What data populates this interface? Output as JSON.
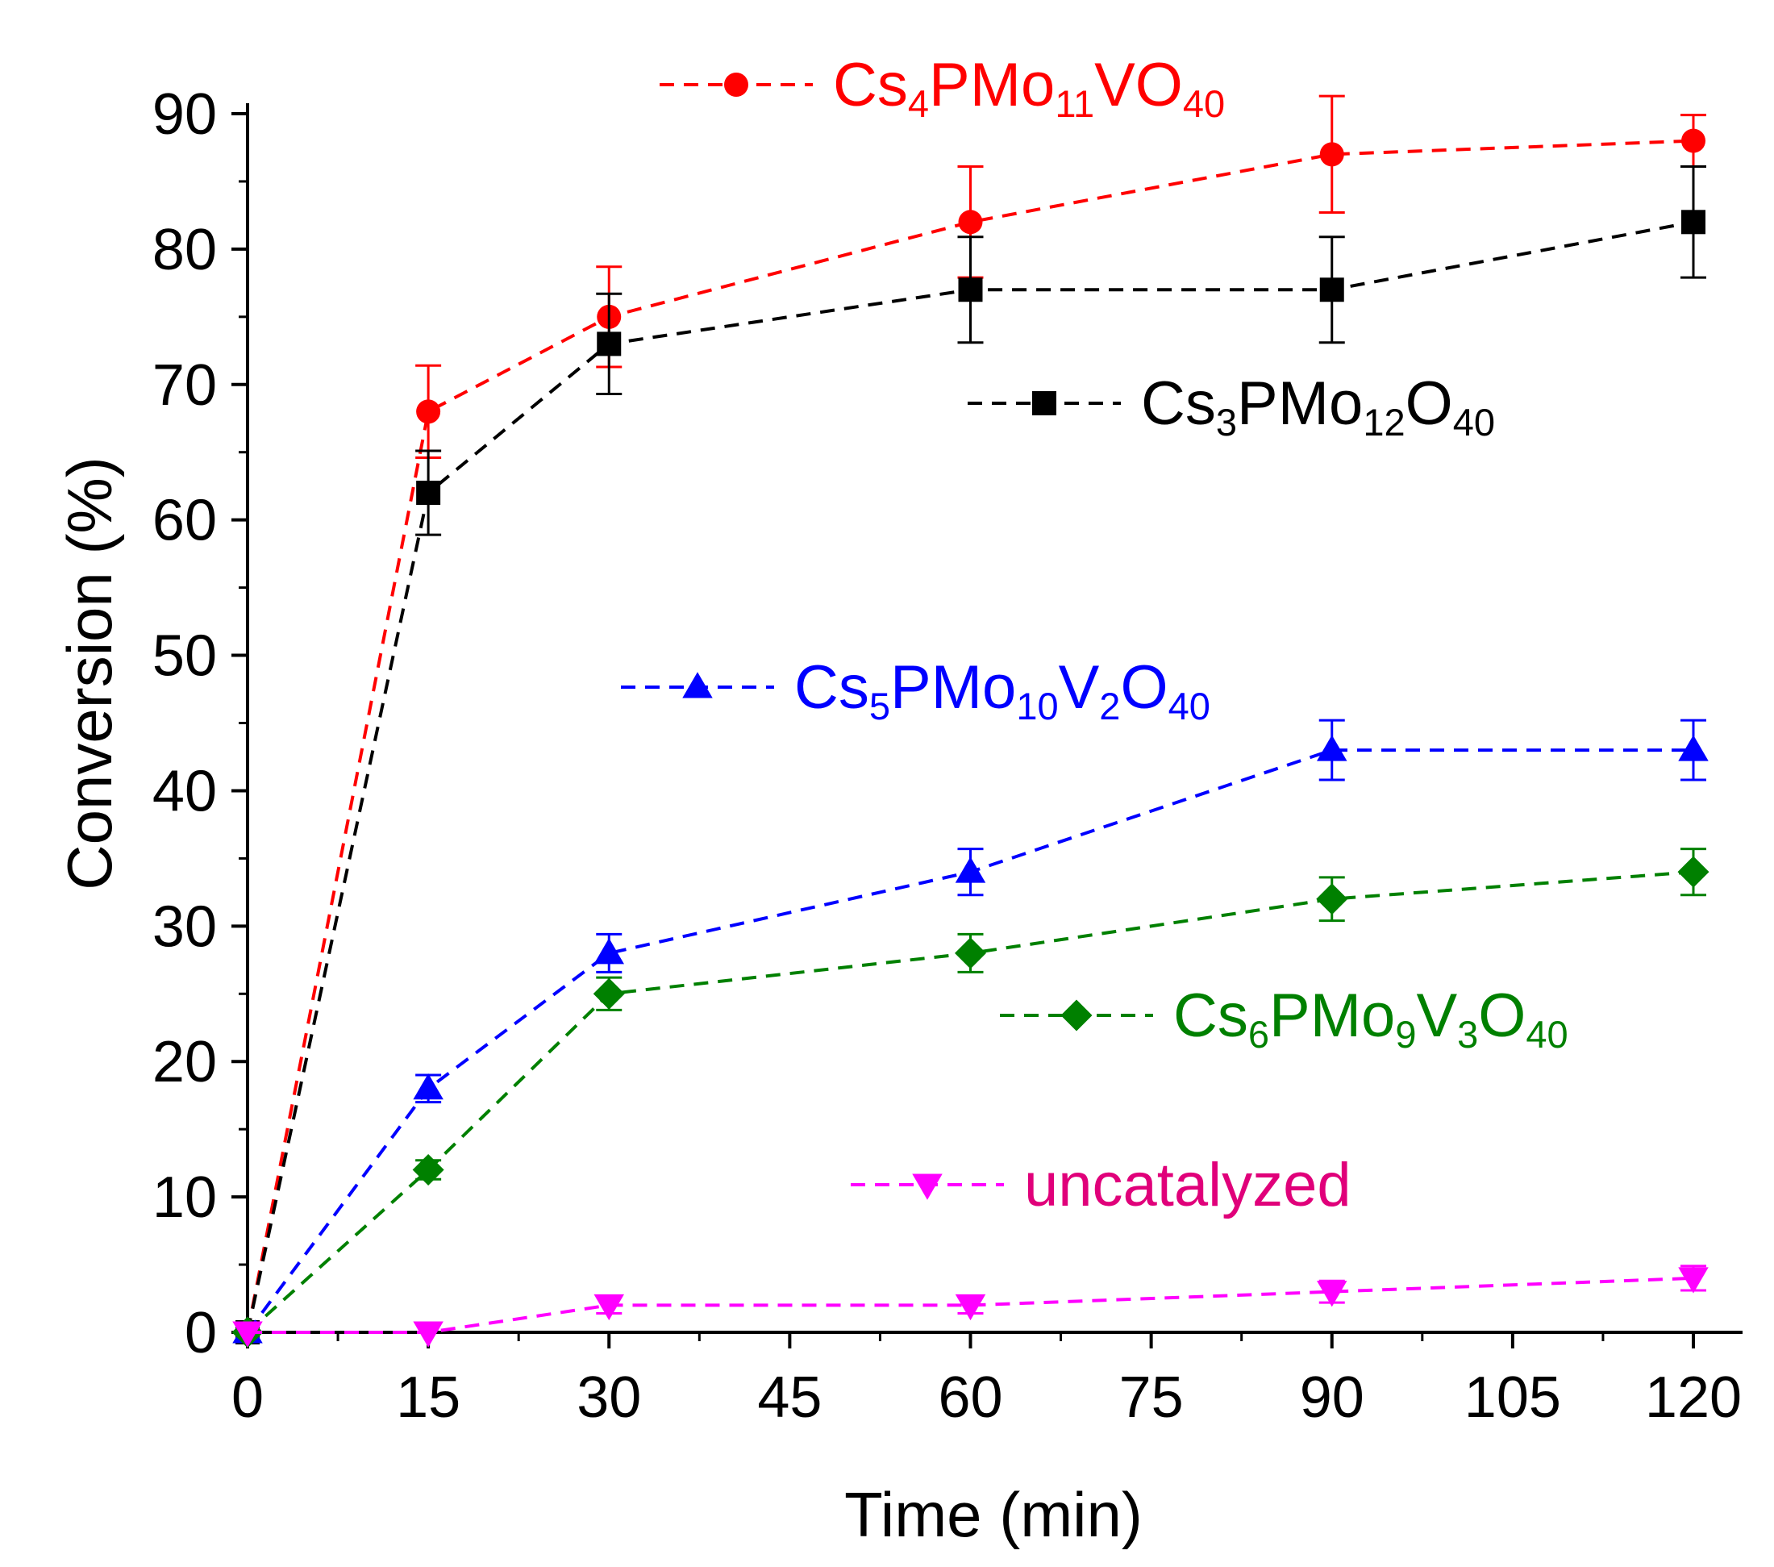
{
  "chart_data": {
    "type": "line",
    "title": "",
    "xlabel": "Time (min)",
    "ylabel": "Conversion (%)",
    "xlim": [
      0,
      124
    ],
    "ylim": [
      0,
      90
    ],
    "xticks": [
      0,
      15,
      30,
      45,
      60,
      75,
      90,
      105,
      120
    ],
    "yticks": [
      0,
      10,
      20,
      30,
      40,
      50,
      60,
      70,
      80,
      90
    ],
    "grid": false,
    "line_style": "dashed",
    "series": [
      {
        "name": "Cs4PMo11VO40",
        "label_parts": [
          [
            "Cs",
            ""
          ],
          [
            "4",
            "sub"
          ],
          [
            "PMo",
            ""
          ],
          [
            "11",
            "sub"
          ],
          [
            "VO",
            ""
          ],
          [
            "40",
            "sub"
          ]
        ],
        "color": "#ff0000",
        "marker": "circle",
        "x": [
          0,
          15,
          30,
          60,
          90,
          120
        ],
        "y": [
          0,
          68,
          75,
          82,
          87,
          88
        ],
        "err": [
          0,
          3.4,
          3.7,
          4.1,
          4.3,
          1.9
        ],
        "legend_pos": "top-center"
      },
      {
        "name": "Cs3PMo12O40",
        "label_parts": [
          [
            "Cs",
            ""
          ],
          [
            "3",
            "sub"
          ],
          [
            "PMo",
            ""
          ],
          [
            "12",
            "sub"
          ],
          [
            "O",
            ""
          ],
          [
            "40",
            "sub"
          ]
        ],
        "color": "#000000",
        "marker": "square",
        "x": [
          0,
          15,
          30,
          60,
          90,
          120
        ],
        "y": [
          0,
          62,
          73,
          77,
          77,
          82
        ],
        "err": [
          0,
          3.1,
          3.7,
          3.9,
          3.9,
          4.1
        ],
        "legend_pos": "upper-right"
      },
      {
        "name": "Cs5PMo10V2O40",
        "label_parts": [
          [
            "Cs",
            ""
          ],
          [
            "5",
            "sub"
          ],
          [
            "PMo",
            ""
          ],
          [
            "10",
            "sub"
          ],
          [
            "V",
            ""
          ],
          [
            "2",
            "sub"
          ],
          [
            "O",
            ""
          ],
          [
            "40",
            "sub"
          ]
        ],
        "color": "#0000ff",
        "marker": "triangle-up",
        "x": [
          0,
          15,
          30,
          60,
          90,
          120
        ],
        "y": [
          0,
          18,
          28,
          34,
          43,
          43
        ],
        "err": [
          0,
          1.0,
          1.4,
          1.7,
          2.2,
          2.2
        ],
        "legend_pos": "middle-center"
      },
      {
        "name": "Cs6PMo9V3O40",
        "label_parts": [
          [
            "Cs",
            ""
          ],
          [
            "6",
            "sub"
          ],
          [
            "PMo",
            ""
          ],
          [
            "9",
            "sub"
          ],
          [
            "V",
            ""
          ],
          [
            "3",
            "sub"
          ],
          [
            "O",
            ""
          ],
          [
            "40",
            "sub"
          ]
        ],
        "color": "#008000",
        "marker": "diamond",
        "x": [
          0,
          15,
          30,
          60,
          90,
          120
        ],
        "y": [
          0,
          12,
          25,
          28,
          32,
          34
        ],
        "err": [
          0,
          0.7,
          1.2,
          1.4,
          1.6,
          1.7
        ],
        "legend_pos": "lower-right"
      },
      {
        "name": "uncatalyzed",
        "label_parts": [
          [
            "uncatalyzed",
            ""
          ]
        ],
        "label_color": "#e0007a",
        "color": "#ff00ff",
        "marker": "triangle-down",
        "x": [
          0,
          15,
          30,
          60,
          90,
          120
        ],
        "y": [
          0,
          0,
          2,
          2,
          3,
          4
        ],
        "err": [
          0,
          0,
          0.6,
          0.6,
          0.8,
          0.9
        ],
        "legend_pos": "bottom-center"
      }
    ]
  }
}
